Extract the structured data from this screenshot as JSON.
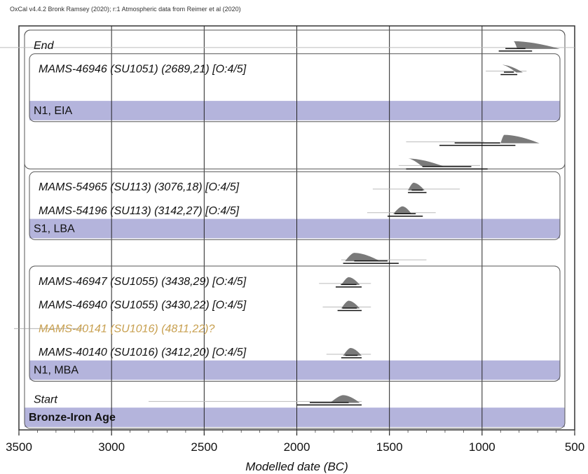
{
  "header": "OxCal v4.4.2 Bronk Ramsey (2020); r:1 Atmospheric data from Reimer et al (2020)",
  "chart_data": {
    "type": "oxcal-multiplot",
    "xlabel": "Modelled date (BC)",
    "xlim": [
      3500,
      500
    ],
    "x_reversed": true,
    "ticks": [
      3500,
      3000,
      2500,
      2000,
      1500,
      1000,
      500
    ],
    "tick_labels": [
      "3500",
      "3000",
      "2500",
      "2000",
      "1500",
      "1000",
      "500"
    ],
    "grid": true,
    "colors": {
      "band": "#b4b4dc",
      "distribution": "#7a7a7a",
      "outlier_text": "#c8a050",
      "frame": "#333333"
    },
    "groups": [
      {
        "label": "",
        "row_start": 0,
        "row_end": 5
      },
      {
        "label": "N1, EIA",
        "row_start": 1,
        "row_end": 3
      },
      {
        "label": "S1, LBA",
        "row_start": 6,
        "row_end": 8
      },
      {
        "label": "N1, MBA",
        "row_start": 10,
        "row_end": 14
      },
      {
        "label": "Bronze-Iron Age",
        "row_start": 0,
        "row_end": 16,
        "bold": true
      }
    ],
    "rows": [
      {
        "label": "End",
        "kind": "bound",
        "dist": [
          830,
          810,
          580,
          500
        ],
        "prior": [
          980,
          500
        ],
        "range": [
          910,
          730
        ]
      },
      {
        "label": "MAMS-46946 (SU1051) (2689,21) [O:4/5]",
        "kind": "sample",
        "dist": [
          895,
          815,
          780,
          980,
          760
        ],
        "prior": [
          980,
          760
        ],
        "range": [
          900,
          810
        ]
      },
      {
        "label": "",
        "kind": "spacer"
      },
      {
        "label": "",
        "kind": "spacer"
      },
      {
        "label": "",
        "kind": "interval",
        "dist": [
          880,
          900,
          690,
          1410,
          990
        ],
        "prior": [
          1410,
          690
        ],
        "range": [
          1230,
          820
        ]
      },
      {
        "label": "",
        "kind": "interval",
        "dist": [
          1400,
          1320,
          1200,
          1450,
          1010
        ],
        "prior": [
          1450,
          1010
        ],
        "range": [
          1410,
          970
        ]
      },
      {
        "label": "MAMS-54965 (SU113) (3076,18) [O:4/5]",
        "kind": "sample",
        "dist": [
          1370,
          1400,
          1310,
          1590,
          1120
        ],
        "prior": [
          1590,
          1120
        ],
        "range": [
          1400,
          1300
        ]
      },
      {
        "label": "MAMS-54196 (SU113) (3142,27) [O:4/5]",
        "kind": "sample",
        "dist": [
          1430,
          1480,
          1380,
          1620,
          1250
        ],
        "prior": [
          1620,
          1250
        ],
        "range": [
          1510,
          1320
        ]
      },
      {
        "label": "",
        "kind": "spacer"
      },
      {
        "label": "",
        "kind": "interval",
        "dist": [
          1690,
          1740,
          1550,
          1760,
          1300
        ],
        "prior": [
          1760,
          1300
        ],
        "range": [
          1750,
          1450
        ]
      },
      {
        "label": "MAMS-46947 (SU1055) (3438,29) [O:4/5]",
        "kind": "sample",
        "dist": [
          1720,
          1760,
          1660,
          1880,
          1600
        ],
        "prior": [
          1880,
          1600
        ],
        "range": [
          1790,
          1650
        ]
      },
      {
        "label": "MAMS-46940 (SU1055) (3430,22) [O:4/5]",
        "kind": "sample",
        "dist": [
          1720,
          1760,
          1660,
          1860,
          1600
        ],
        "prior": [
          1860,
          1600
        ],
        "range": [
          1780,
          1650
        ]
      },
      {
        "label": "MAMS-40141 (SU1016) (4811,22)?",
        "kind": "outlier"
      },
      {
        "label": "MAMS-40140 (SU1016) (3412,20) [O:4/5]",
        "kind": "sample",
        "dist": [
          1710,
          1750,
          1650,
          1840,
          1600
        ],
        "prior": [
          1840,
          1600
        ],
        "range": [
          1760,
          1650
        ]
      },
      {
        "label": "",
        "kind": "spacer"
      },
      {
        "label": "Start",
        "kind": "bound",
        "dist": [
          1750,
          1820,
          1660,
          2800,
          1650
        ],
        "prior": [
          2800,
          1650
        ],
        "range": [
          2000,
          1650
        ]
      },
      {
        "label": "",
        "kind": "spacer"
      }
    ]
  }
}
